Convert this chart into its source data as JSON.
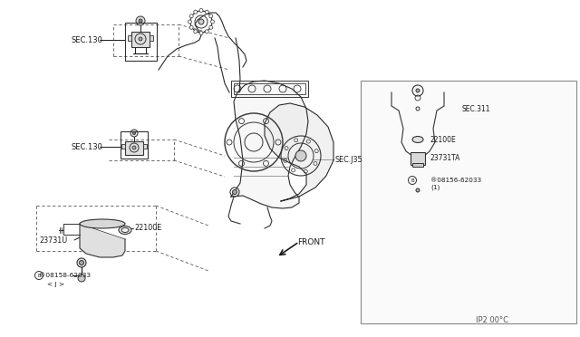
{
  "bg_color": "#ffffff",
  "line_color": "#1a1a1a",
  "fig_width": 6.4,
  "fig_height": 3.72,
  "dpi": 100,
  "labels": {
    "sec130_top": "SEC.130",
    "sec130_mid": "SEC.130",
    "sec135": "SEC.J35",
    "sec311": "SEC.311",
    "part_22100e_main": "22100E",
    "part_23731u": "23731U",
    "bolt_main_1": "®08158-62033",
    "bolt_main_2": "< J >",
    "part_22100e_inset": "22100E",
    "part_23731ta": "23731TA",
    "bolt_inset_1": "®08156-62033",
    "bolt_inset_2": "(1)",
    "front": "FRONT",
    "page_ref": "IP2 00°C"
  }
}
